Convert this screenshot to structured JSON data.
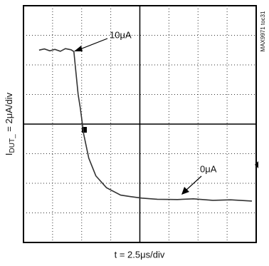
{
  "chart_data": {
    "type": "line",
    "xlabel": "t = 2.5μs/div",
    "ylabel_main": "I",
    "ylabel_sub": "DUT_",
    "ylabel_rest": " = 2μA/div",
    "watermark": "MAX9971 toc31",
    "annotations": [
      "10μA",
      "0μA"
    ],
    "xlim": [
      0,
      20
    ],
    "ylim": [
      -3,
      13
    ],
    "grid": true,
    "series": [
      {
        "color": "#333333",
        "x": [
          1.34,
          1.8,
          2.26,
          2.7,
          3.17,
          3.6,
          4.09,
          4.33,
          4.51,
          4.7,
          4.88,
          5.18,
          5.61,
          6.22,
          7.13,
          8.35,
          9.2,
          10.18,
          11.5,
          13.23,
          14.6,
          16.28,
          17.8,
          19.63
        ],
        "values": [
          10.0,
          10.08,
          9.95,
          10.05,
          9.92,
          10.1,
          10.02,
          9.9,
          8.5,
          7.0,
          6.1,
          4.3,
          2.7,
          1.5,
          0.7,
          0.2,
          0.1,
          0.0,
          -0.08,
          -0.1,
          -0.05,
          -0.15,
          -0.12,
          -0.2
        ]
      }
    ]
  }
}
